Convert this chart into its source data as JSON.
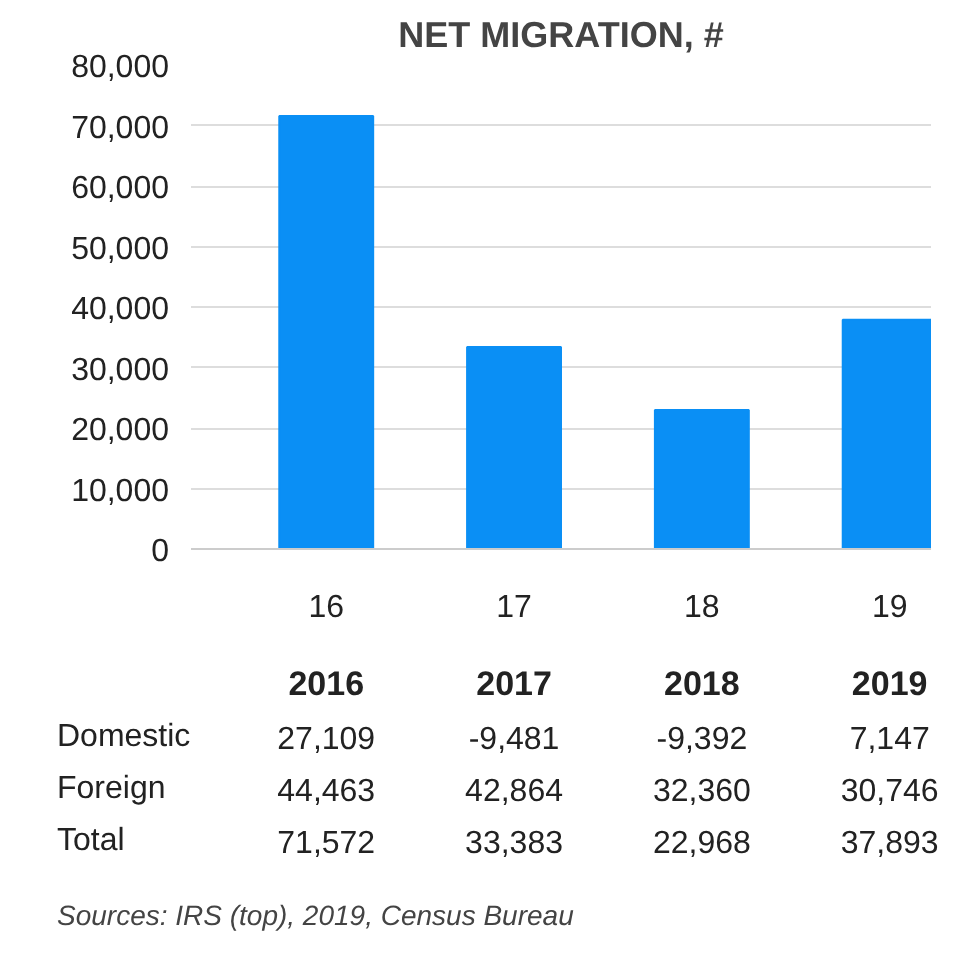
{
  "chart_data": {
    "type": "bar",
    "title": "NET MIGRATION, #",
    "categories": [
      "16",
      "17",
      "18",
      "19"
    ],
    "values": [
      71572,
      33383,
      22968,
      37893
    ],
    "value_labels": [
      "71,572",
      "33,383",
      "22,968",
      "37,893"
    ],
    "color": "#0a8ff5",
    "ylim": [
      0,
      80000
    ],
    "yticks": [
      {
        "value": 0,
        "label": "0"
      },
      {
        "value": 10000,
        "label": "10,000"
      },
      {
        "value": 20000,
        "label": "20,000"
      },
      {
        "value": 30000,
        "label": "30,000"
      },
      {
        "value": 40000,
        "label": "40,000"
      },
      {
        "value": 50000,
        "label": "50,000"
      },
      {
        "value": 60000,
        "label": "60,000"
      },
      {
        "value": 70000,
        "label": "70,000"
      },
      {
        "value": 80000,
        "label": "80,000"
      }
    ],
    "grid": "y",
    "annotations": [
      "2016",
      "2017",
      "2018",
      "2019",
      "Domestic",
      "27,109",
      "-9,481",
      "-9,392",
      "7,147",
      "Foreign",
      "44,463",
      "42,864",
      "32,360",
      "30,746",
      "Total",
      "Sources: IRS (top), 2019, Census Bureau"
    ]
  }
}
